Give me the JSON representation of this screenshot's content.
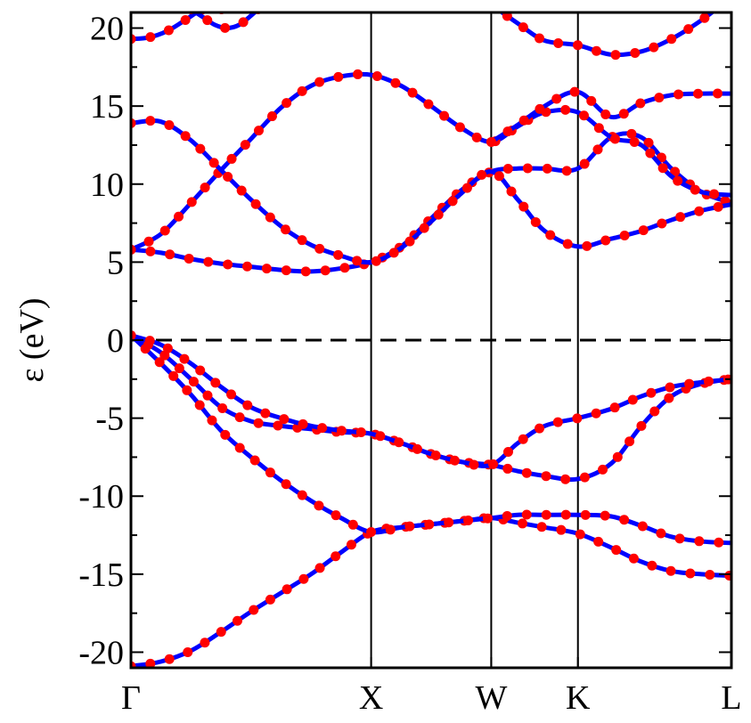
{
  "chart_data": {
    "type": "line",
    "ylabel": "ε (eV)",
    "ylim": [
      -21,
      21
    ],
    "y_ticks": [
      {
        "value": 20,
        "label": "20"
      },
      {
        "value": 15,
        "label": "15"
      },
      {
        "value": 10,
        "label": "10"
      },
      {
        "value": 5,
        "label": "5"
      },
      {
        "value": 0,
        "label": "0"
      },
      {
        "value": -5,
        "label": "-5"
      },
      {
        "value": -10,
        "label": "-10"
      },
      {
        "value": -15,
        "label": "-15"
      },
      {
        "value": -20,
        "label": "-20"
      }
    ],
    "xlim": [
      0,
      1
    ],
    "k_points": [
      {
        "label": "Γ",
        "x": 0
      },
      {
        "label": "X",
        "x": 0.4
      },
      {
        "label": "W",
        "x": 0.6
      },
      {
        "label": "K",
        "x": 0.7444
      },
      {
        "label": "L",
        "x": 1.0
      }
    ],
    "fermi_level": 0,
    "colors": {
      "line": "#0000ff",
      "marker": "#ff0000",
      "fermi": "#000000"
    },
    "series": [
      {
        "x": [
          0,
          0.05,
          0.1,
          0.15,
          0.2,
          0.25,
          0.3,
          0.35,
          0.4,
          0.45,
          0.5,
          0.55,
          0.6,
          0.6444,
          0.6889,
          0.7444,
          0.8,
          0.85,
          0.9,
          0.95,
          1.0
        ],
        "y": [
          -20.9,
          -20.6,
          -19.9,
          -18.7,
          -17.4,
          -16.2,
          -15.0,
          -13.6,
          -12.3,
          -12.0,
          -11.8,
          -11.6,
          -11.4,
          -11.7,
          -12.0,
          -12.4,
          -13.3,
          -14.2,
          -14.8,
          -15.0,
          -15.1
        ]
      },
      {
        "x": [
          0,
          0.05,
          0.1,
          0.15,
          0.2,
          0.25,
          0.3,
          0.35,
          0.4,
          0.45,
          0.5,
          0.55,
          0.6,
          0.6444,
          0.6889,
          0.7444,
          0.8,
          0.85,
          0.9,
          0.95,
          1.0
        ],
        "y": [
          0.3,
          -1.5,
          -3.5,
          -5.8,
          -7.5,
          -9.0,
          -10.3,
          -11.4,
          -12.3,
          -12.0,
          -11.8,
          -11.6,
          -11.4,
          -11.2,
          -11.2,
          -11.2,
          -11.3,
          -11.9,
          -12.6,
          -12.9,
          -13.0
        ]
      },
      {
        "x": [
          0,
          0.05,
          0.1,
          0.15,
          0.2,
          0.25,
          0.3,
          0.35,
          0.4,
          0.45,
          0.5,
          0.55,
          0.6,
          0.6444,
          0.6889,
          0.7444,
          0.8,
          0.85,
          0.9,
          0.95,
          1.0
        ],
        "y": [
          0.3,
          -0.8,
          -2.5,
          -4.3,
          -5.2,
          -5.5,
          -5.7,
          -5.9,
          -6.0,
          -6.6,
          -7.3,
          -7.8,
          -8.0,
          -8.4,
          -8.7,
          -8.9,
          -7.9,
          -5.5,
          -3.6,
          -2.8,
          -2.5
        ]
      },
      {
        "x": [
          0,
          0.05,
          0.1,
          0.15,
          0.2,
          0.25,
          0.3,
          0.35,
          0.4,
          0.45,
          0.5,
          0.55,
          0.6,
          0.6444,
          0.6889,
          0.7444,
          0.8,
          0.85,
          0.9,
          0.95,
          1.0
        ],
        "y": [
          0.3,
          -0.3,
          -1.5,
          -3.0,
          -4.3,
          -5.0,
          -5.5,
          -5.8,
          -6.0,
          -6.6,
          -7.3,
          -7.8,
          -8.0,
          -6.6,
          -5.5,
          -5.0,
          -4.4,
          -3.6,
          -3.0,
          -2.7,
          -2.5
        ]
      },
      {
        "x": [
          0,
          0.05,
          0.1,
          0.15,
          0.2,
          0.25,
          0.3,
          0.35,
          0.4,
          0.45,
          0.5,
          0.55,
          0.6,
          0.6444,
          0.6889,
          0.7444,
          0.8,
          0.85,
          0.9,
          0.95,
          1.0
        ],
        "y": [
          5.8,
          5.6,
          5.2,
          4.9,
          4.7,
          4.5,
          4.4,
          4.6,
          5.0,
          6.0,
          7.8,
          9.6,
          10.8,
          11.0,
          11.0,
          11.0,
          13.0,
          13.0,
          11.0,
          9.5,
          8.8
        ]
      },
      {
        "x": [
          0,
          0.05,
          0.1,
          0.15,
          0.2,
          0.25,
          0.3,
          0.35,
          0.4,
          0.45,
          0.5,
          0.55,
          0.6,
          0.6444,
          0.6889,
          0.7444,
          0.8,
          0.85,
          0.9,
          0.95,
          1.0
        ],
        "y": [
          5.8,
          6.8,
          8.8,
          10.9,
          12.9,
          14.9,
          16.3,
          16.9,
          17.0,
          16.3,
          15.0,
          13.6,
          12.7,
          13.7,
          14.6,
          14.6,
          13.0,
          12.5,
          10.5,
          9.5,
          9.3
        ]
      },
      {
        "x": [
          0,
          0.05,
          0.1,
          0.15,
          0.2,
          0.25,
          0.3,
          0.35,
          0.4,
          0.45,
          0.5,
          0.55,
          0.6,
          0.6444,
          0.6889,
          0.7444,
          0.8,
          0.85,
          0.9,
          0.95,
          1.0
        ],
        "y": [
          13.9,
          14.0,
          12.8,
          10.9,
          9.0,
          7.3,
          6.1,
          5.4,
          5.0,
          5.9,
          7.6,
          9.4,
          10.8,
          9.0,
          7.0,
          6.0,
          6.5,
          7.0,
          7.7,
          8.3,
          8.7
        ]
      },
      {
        "x": [
          0.6,
          0.6444,
          0.6889,
          0.7444,
          0.8,
          0.85,
          0.9,
          0.95,
          1.0
        ],
        "y": [
          12.7,
          13.8,
          15.0,
          15.9,
          14.3,
          15.2,
          15.7,
          15.8,
          15.8
        ]
      },
      {
        "x": [
          0,
          0.03,
          0.06,
          0.09,
          0.12,
          0.15,
          0.18,
          0.21
        ],
        "y": [
          19.3,
          19.4,
          19.8,
          20.5,
          21.2,
          21.2,
          21.5,
          22.0
        ]
      },
      {
        "x": [
          0.1,
          0.12,
          0.14,
          0.16,
          0.18,
          0.2,
          0.22
        ],
        "y": [
          21.2,
          20.7,
          20.2,
          20.0,
          20.2,
          20.8,
          21.5
        ]
      },
      {
        "x": [
          0.6,
          0.6444,
          0.6889,
          0.7444,
          0.8,
          0.85,
          0.9,
          0.95,
          1.0
        ],
        "y": [
          21.5,
          20.3,
          19.2,
          18.9,
          18.3,
          18.5,
          19.3,
          20.5,
          22.0
        ]
      }
    ]
  }
}
